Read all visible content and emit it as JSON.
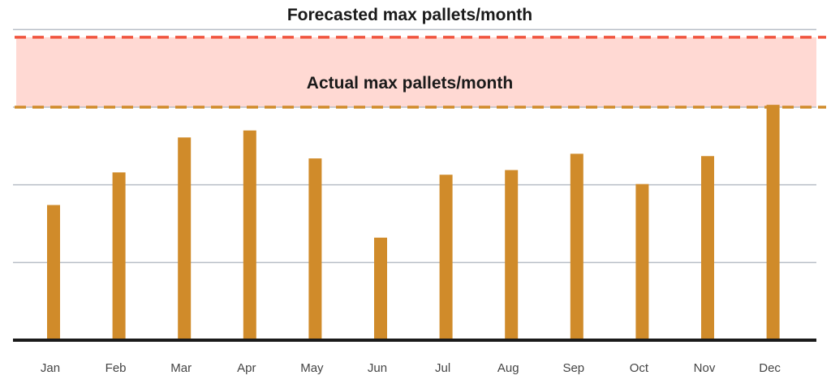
{
  "chart_data": {
    "type": "bar",
    "title": "",
    "xlabel": "",
    "ylabel": "",
    "categories": [
      "Jan",
      "Feb",
      "Mar",
      "Apr",
      "May",
      "Jun",
      "Jul",
      "Aug",
      "Sep",
      "Oct",
      "Nov",
      "Dec"
    ],
    "values": [
      58,
      72,
      87,
      90,
      78,
      44,
      71,
      73,
      80,
      67,
      79,
      101
    ],
    "ylim": [
      0,
      130
    ],
    "gridlines": [
      33.3,
      66.7,
      100,
      133.3
    ],
    "grid": true,
    "y_tick_labels_shown": false,
    "bar_color": "#d08b2a",
    "reference_lines": [
      {
        "name": "forecasted",
        "label": "Forecasted max pallets/month",
        "value": 130,
        "color": "#f0553f",
        "style": "dashed"
      },
      {
        "name": "actual",
        "label": "Actual max pallets/month",
        "value": 100,
        "color": "#d08b2a",
        "style": "dashed"
      }
    ],
    "band": {
      "from": 100,
      "to": 130,
      "color": "#ffd9d3"
    }
  }
}
